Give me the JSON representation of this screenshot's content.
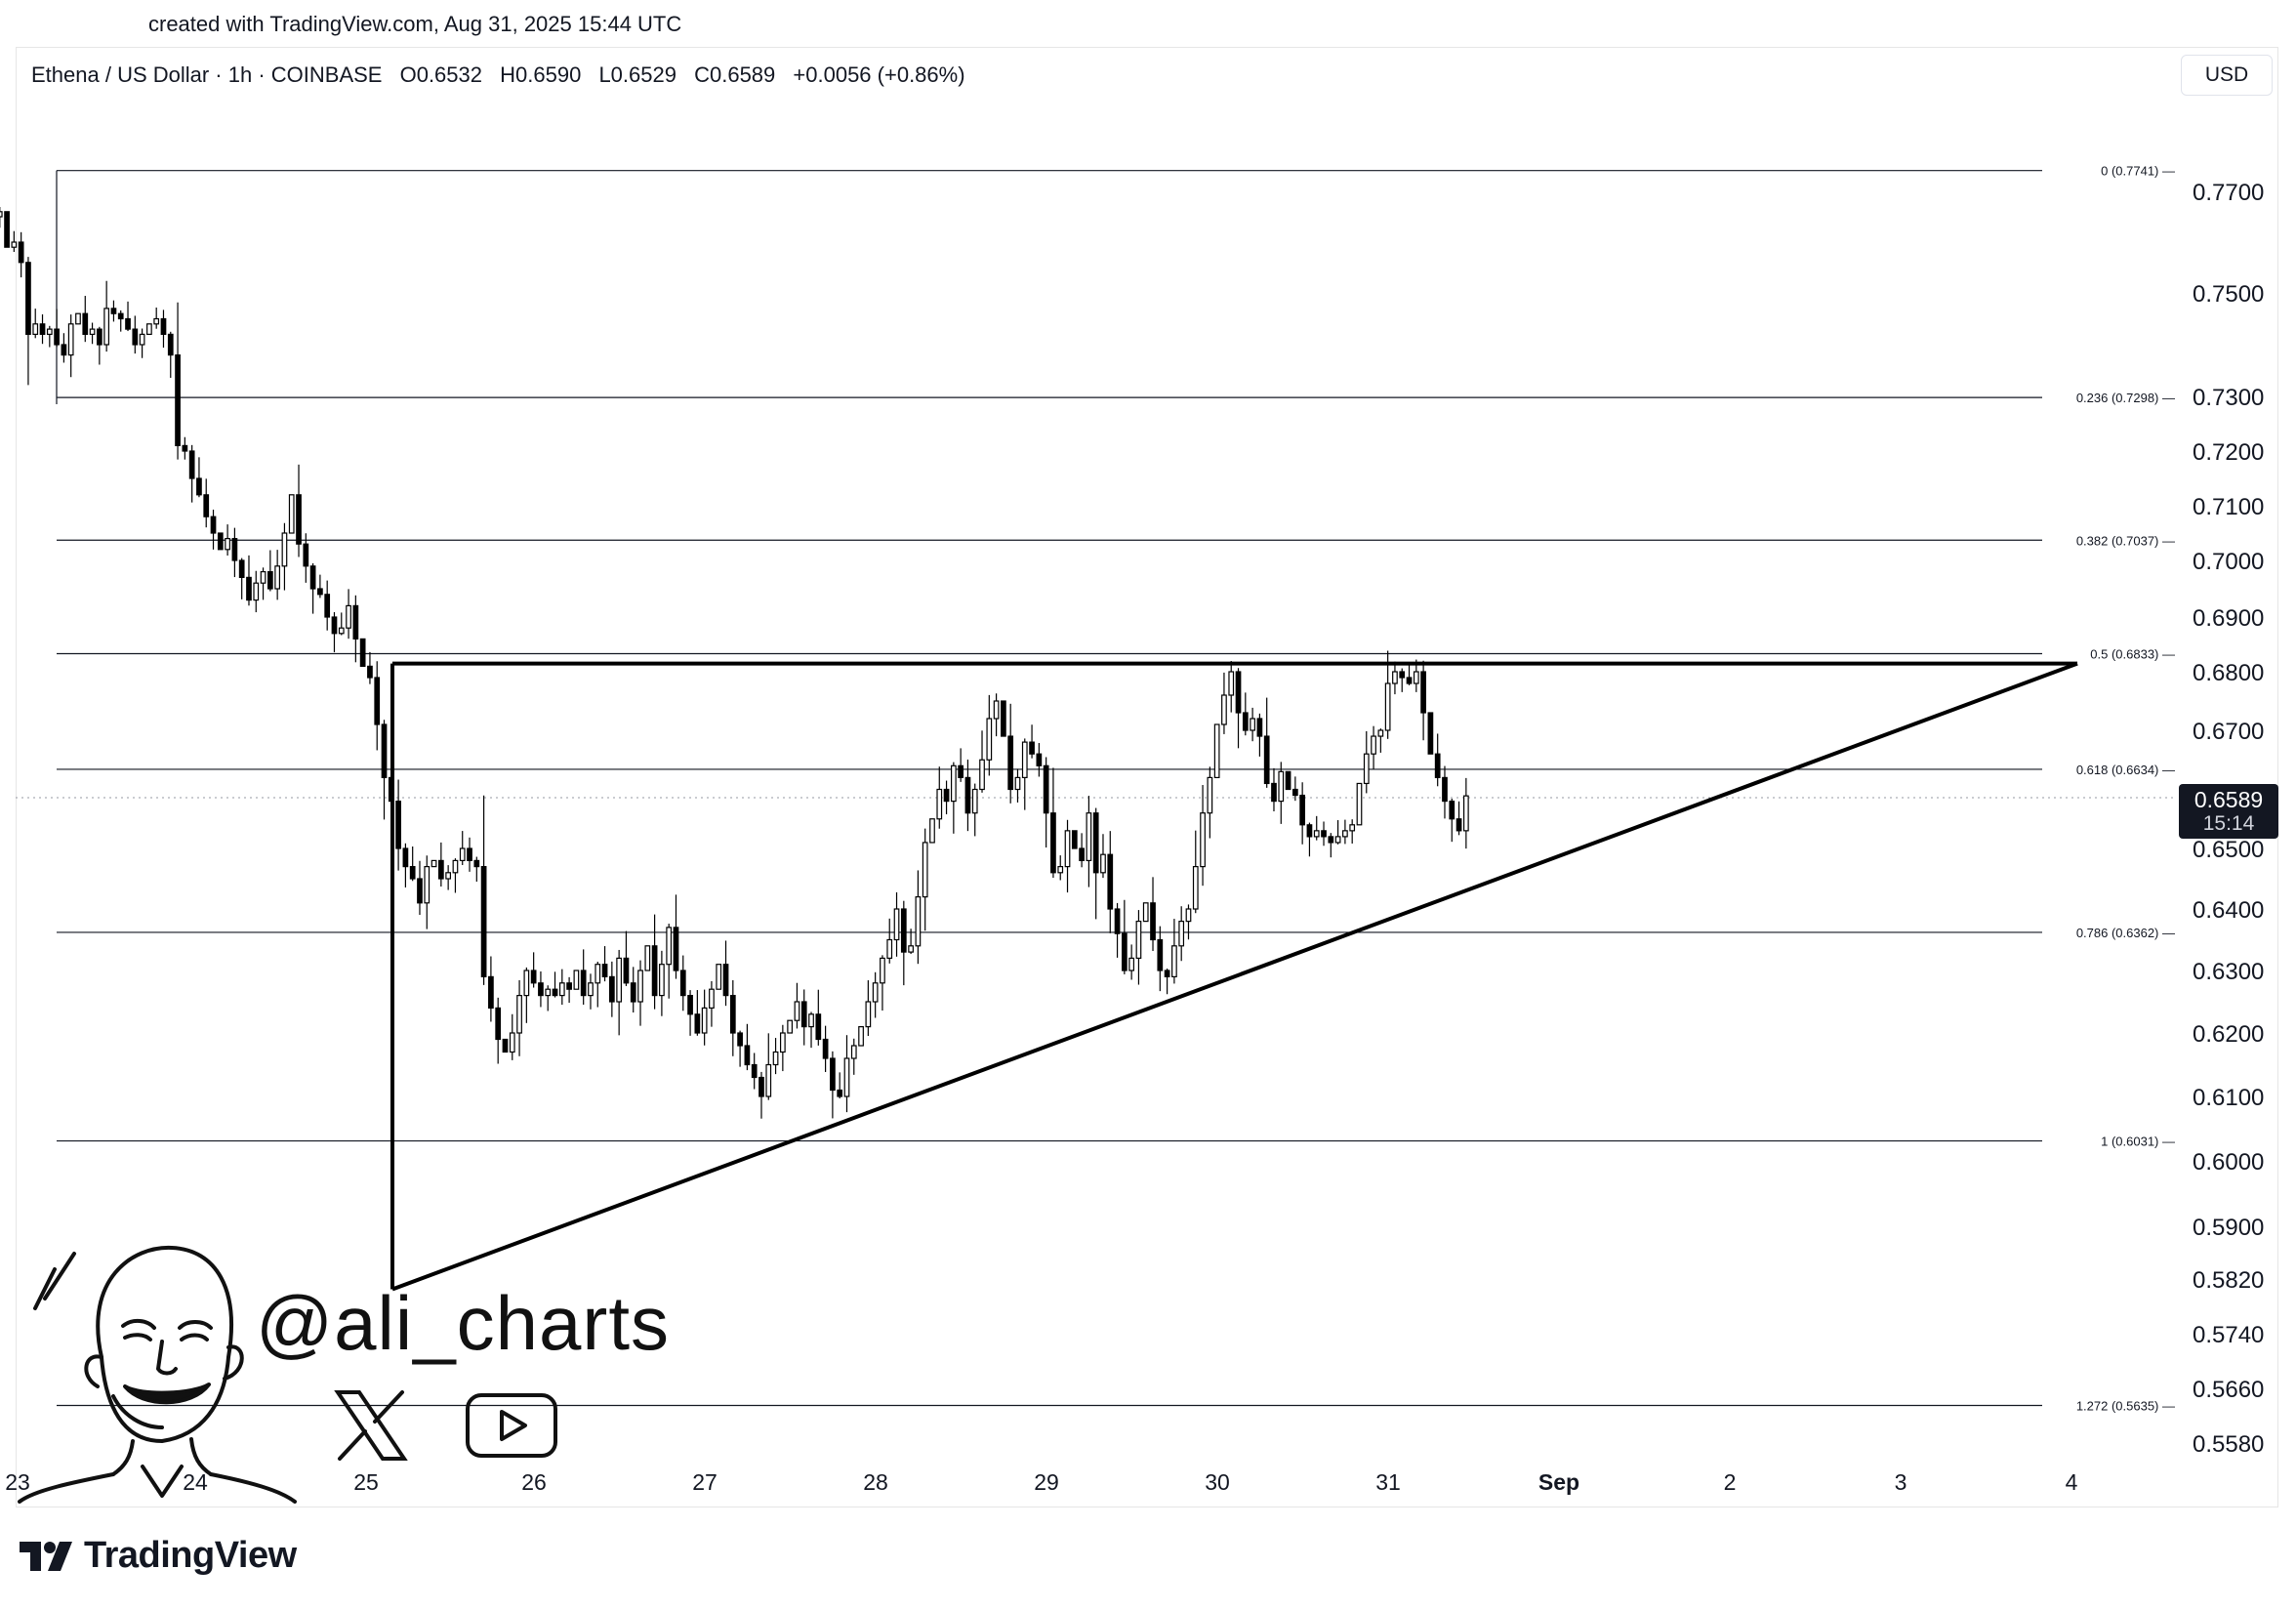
{
  "credit": "created with TradingView.com, Aug 31, 2025 15:44 UTC",
  "legend": {
    "symbol": "Ethena / US Dollar · 1h · COINBASE",
    "open": "O0.6532",
    "high": "H0.6590",
    "low": "L0.6529",
    "close": "C0.6589",
    "change": "+0.0056 (+0.86%)"
  },
  "currency": "USD",
  "price_tag": {
    "price": "0.6589",
    "countdown": "15:14"
  },
  "watermark": {
    "handle": "@ali_charts",
    "x_icon": "x-logo-icon",
    "youtube_icon": "youtube-play-icon"
  },
  "brand": "TradingView",
  "colors": {
    "candle_up": "#ffffff",
    "candle_down": "#000000",
    "line": "#000000",
    "grid": "#000000"
  },
  "chart_data": {
    "type": "candlestick",
    "title": "Ethena / US Dollar · 1h · COINBASE",
    "y_ticks": [
      "0.7700",
      "0.7500",
      "0.7300",
      "0.7200",
      "0.7100",
      "0.7000",
      "0.6900",
      "0.6800",
      "0.6700",
      "0.6500",
      "0.6400",
      "0.6300",
      "0.6200",
      "0.6100",
      "0.6000",
      "0.5900",
      "0.5820",
      "0.5740",
      "0.5660",
      "0.5580"
    ],
    "x_ticks": [
      "23",
      "24",
      "25",
      "26",
      "27",
      "28",
      "29",
      "30",
      "31",
      "Sep",
      "2",
      "3",
      "4"
    ],
    "fib_levels": [
      {
        "label": "0 (0.7741)",
        "value": 0.7741
      },
      {
        "label": "0.236 (0.7298)",
        "value": 0.7298
      },
      {
        "label": "0.382 (0.7037)",
        "value": 0.7037
      },
      {
        "label": "0.5 (0.6833)",
        "value": 0.6833
      },
      {
        "label": "0.618 (0.6634)",
        "value": 0.6634
      },
      {
        "label": "0.786 (0.6362)",
        "value": 0.6362
      },
      {
        "label": "1 (0.6031)",
        "value": 0.6031
      },
      {
        "label": "1.272 (0.5635)",
        "value": 0.5635
      }
    ],
    "pattern": {
      "type": "ascending triangle",
      "resistance": 0.6815,
      "start_low": 0.5805,
      "start_date": "Aug 25",
      "apex_date": "Sep 4"
    },
    "closes": [
      0.762,
      0.764,
      0.758,
      0.765,
      0.76,
      0.764,
      0.762,
      0.768,
      0.765,
      0.766,
      0.759,
      0.76,
      0.756,
      0.742,
      0.744,
      0.742,
      0.743,
      0.74,
      0.738,
      0.744,
      0.746,
      0.742,
      0.743,
      0.74,
      0.747,
      0.746,
      0.745,
      0.743,
      0.74,
      0.742,
      0.744,
      0.745,
      0.742,
      0.738,
      0.721,
      0.72,
      0.715,
      0.712,
      0.708,
      0.705,
      0.702,
      0.704,
      0.7,
      0.697,
      0.693,
      0.696,
      0.698,
      0.695,
      0.699,
      0.705,
      0.712,
      0.703,
      0.699,
      0.695,
      0.694,
      0.69,
      0.687,
      0.688,
      0.692,
      0.686,
      0.681,
      0.679,
      0.671,
      0.662,
      0.658,
      0.65,
      0.647,
      0.645,
      0.641,
      0.647,
      0.648,
      0.645,
      0.646,
      0.648,
      0.65,
      0.648,
      0.647,
      0.629,
      0.624,
      0.619,
      0.617,
      0.62,
      0.626,
      0.63,
      0.628,
      0.626,
      0.627,
      0.626,
      0.628,
      0.627,
      0.63,
      0.626,
      0.628,
      0.631,
      0.629,
      0.625,
      0.632,
      0.628,
      0.625,
      0.63,
      0.634,
      0.626,
      0.631,
      0.637,
      0.63,
      0.626,
      0.623,
      0.62,
      0.624,
      0.627,
      0.631,
      0.626,
      0.62,
      0.618,
      0.615,
      0.613,
      0.61,
      0.615,
      0.617,
      0.62,
      0.622,
      0.625,
      0.621,
      0.623,
      0.619,
      0.616,
      0.611,
      0.61,
      0.616,
      0.618,
      0.621,
      0.625,
      0.628,
      0.632,
      0.635,
      0.64,
      0.633,
      0.634,
      0.642,
      0.651,
      0.655,
      0.66,
      0.658,
      0.664,
      0.662,
      0.656,
      0.66,
      0.665,
      0.672,
      0.675,
      0.669,
      0.66,
      0.662,
      0.668,
      0.666,
      0.664,
      0.656,
      0.646,
      0.647,
      0.653,
      0.65,
      0.648,
      0.656,
      0.646,
      0.649,
      0.64,
      0.636,
      0.63,
      0.632,
      0.638,
      0.641,
      0.635,
      0.63,
      0.629,
      0.634,
      0.638,
      0.64,
      0.647,
      0.656,
      0.662,
      0.671,
      0.676,
      0.68,
      0.673,
      0.67,
      0.672,
      0.669,
      0.661,
      0.658,
      0.663,
      0.66,
      0.659,
      0.654,
      0.652,
      0.653,
      0.652,
      0.651,
      0.652,
      0.653,
      0.654,
      0.661,
      0.666,
      0.669,
      0.67,
      0.678,
      0.68,
      0.679,
      0.678,
      0.68,
      0.673,
      0.666,
      0.662,
      0.658,
      0.655,
      0.653,
      0.6589
    ]
  }
}
